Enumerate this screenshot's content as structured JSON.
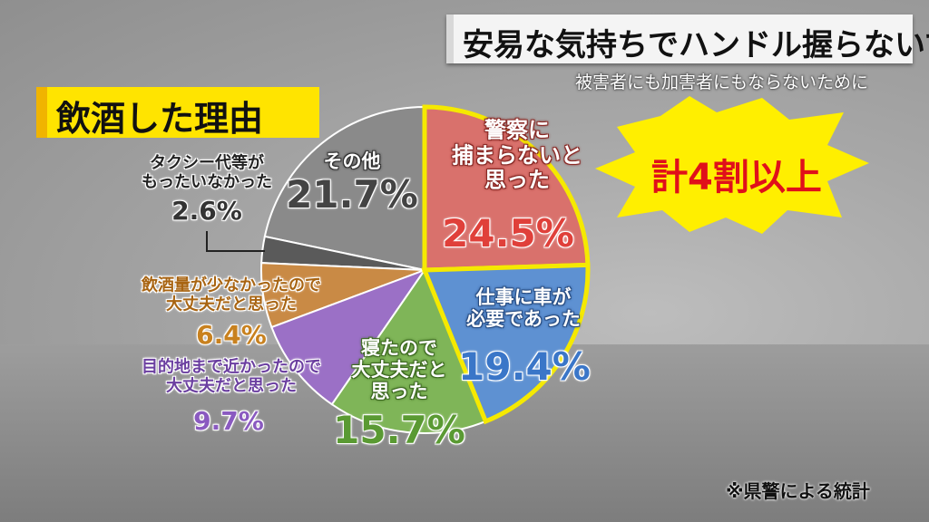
{
  "chart_data": {
    "type": "pie",
    "title": "安易な気持ちでハンドル握らないで",
    "subtitle": "被害者にも加害者にもならないために",
    "heading": "飲酒した理由",
    "annotation": "計4割以上",
    "source": "※県警による統計",
    "categories": [
      "警察に\n捕まらないと\n思った",
      "仕事に車が\n必要であった",
      "寝たので\n大丈夫だと\n思った",
      "目的地まで近かったので\n大丈夫だと思った",
      "飲酒量が少なかったので\n大丈夫だと思った",
      "タクシー代等が\nもったいなかった",
      "その他"
    ],
    "values": [
      24.5,
      19.4,
      15.7,
      9.7,
      6.4,
      2.6,
      21.7
    ],
    "value_labels": [
      "24.5%",
      "19.4%",
      "15.7%",
      "9.7%",
      "6.4%",
      "2.6%",
      "21.7%"
    ],
    "colors": [
      "#d9716c",
      "#5e91d2",
      "#7fb558",
      "#9b70c6",
      "#c98a45",
      "#5a5a5a",
      "#8a8a8a"
    ]
  }
}
